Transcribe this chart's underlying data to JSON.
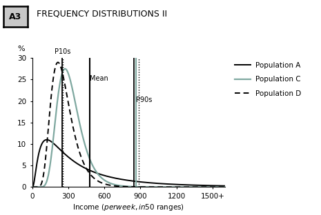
{
  "title": "FREQUENCY DISTRIBUTIONS II",
  "ylabel": "%",
  "xlabel": "Income ($ per week, in $50 ranges)",
  "xlim": [
    0,
    1600
  ],
  "ylim": [
    0,
    30
  ],
  "xticks": [
    0,
    300,
    600,
    900,
    1200,
    1500
  ],
  "xticklabels": [
    "0",
    "300",
    "600",
    "900",
    "1200",
    "1500+"
  ],
  "yticks": [
    0,
    5,
    10,
    15,
    20,
    25,
    30
  ],
  "pop_A_color": "#000000",
  "pop_C_color": "#7fa8a0",
  "pop_D_color": "#000000",
  "p10_solid_x": 248,
  "p10_dot_x": 258,
  "mean_x": 480,
  "p90_solid_black_x": 845,
  "p90_solid_grey_x": 865,
  "p90_dot_x": 885,
  "p10_label": "P10s",
  "mean_label": "Mean",
  "p90_label": "P90s",
  "legend_entries": [
    "Population A",
    "Population C",
    "Population D"
  ],
  "background_color": "#ffffff",
  "A3_label": "A3",
  "A3_bg": "#c8c8c8"
}
